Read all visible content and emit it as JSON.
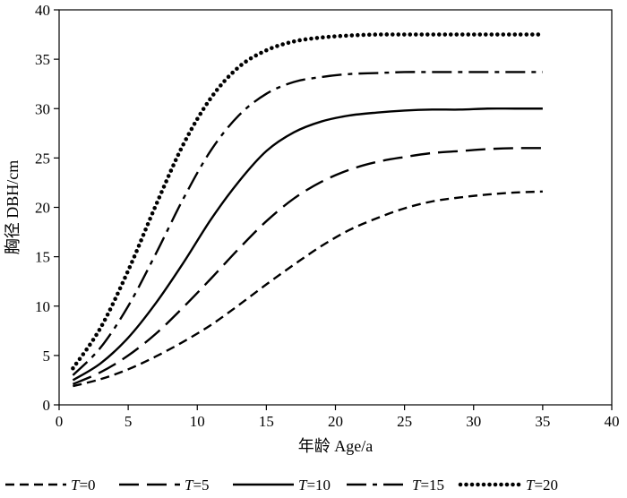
{
  "chart_data": {
    "type": "line",
    "xlabel": "年龄  Age/a",
    "ylabel": "胸径  DBH/cm",
    "xlim": [
      0,
      40
    ],
    "ylim": [
      0,
      40
    ],
    "xticks": [
      0,
      5,
      10,
      15,
      20,
      25,
      30,
      35,
      40
    ],
    "yticks": [
      0,
      5,
      10,
      15,
      20,
      25,
      30,
      35,
      40
    ],
    "grid": false,
    "legend_position": "bottom",
    "series": [
      {
        "name": "T=0",
        "legend_var": "T",
        "legend_val": "=0",
        "style": "short-dash",
        "x": [
          1,
          3,
          5,
          7,
          9,
          11,
          13,
          15,
          17,
          19,
          21,
          23,
          25,
          27,
          29,
          31,
          33,
          35
        ],
        "y": [
          1.9,
          2.6,
          3.6,
          4.9,
          6.4,
          8.1,
          10.1,
          12.2,
          14.2,
          16.1,
          17.7,
          18.9,
          19.9,
          20.6,
          21.0,
          21.3,
          21.5,
          21.6
        ]
      },
      {
        "name": "T=5",
        "legend_var": "T",
        "legend_val": "=5",
        "style": "long-dash",
        "x": [
          1,
          3,
          5,
          7,
          9,
          11,
          13,
          15,
          17,
          19,
          21,
          23,
          25,
          27,
          29,
          31,
          33,
          35
        ],
        "y": [
          2.1,
          3.3,
          5.0,
          7.2,
          9.9,
          12.8,
          15.8,
          18.6,
          20.9,
          22.6,
          23.8,
          24.6,
          25.1,
          25.5,
          25.7,
          25.9,
          26.0,
          26.0
        ]
      },
      {
        "name": "T=10",
        "legend_var": "T",
        "legend_val": "=10",
        "style": "solid",
        "x": [
          1,
          3,
          5,
          7,
          9,
          11,
          13,
          15,
          17,
          19,
          21,
          23,
          25,
          27,
          29,
          31,
          33,
          35
        ],
        "y": [
          2.5,
          4.2,
          6.8,
          10.3,
          14.4,
          18.8,
          22.6,
          25.7,
          27.6,
          28.7,
          29.3,
          29.6,
          29.8,
          29.9,
          29.9,
          30.0,
          30.0,
          30.0
        ]
      },
      {
        "name": "T=15",
        "legend_var": "T",
        "legend_val": "=15",
        "style": "dash-dot",
        "x": [
          1,
          3,
          5,
          7,
          9,
          11,
          13,
          15,
          17,
          19,
          21,
          23,
          25,
          27,
          29,
          31,
          33,
          35
        ],
        "y": [
          3.0,
          5.8,
          10.0,
          15.3,
          20.9,
          25.8,
          29.3,
          31.5,
          32.7,
          33.2,
          33.5,
          33.6,
          33.7,
          33.7,
          33.7,
          33.7,
          33.7,
          33.7
        ]
      },
      {
        "name": "T=20",
        "legend_var": "T",
        "legend_val": "=20",
        "style": "dotted",
        "x": [
          1,
          3,
          5,
          7,
          9,
          11,
          13,
          15,
          17,
          19,
          21,
          23,
          25,
          27,
          29,
          31,
          33,
          35
        ],
        "y": [
          3.7,
          7.8,
          13.6,
          20.2,
          26.4,
          31.1,
          34.2,
          35.9,
          36.8,
          37.2,
          37.4,
          37.5,
          37.5,
          37.5,
          37.5,
          37.5,
          37.5,
          37.5
        ]
      }
    ]
  }
}
